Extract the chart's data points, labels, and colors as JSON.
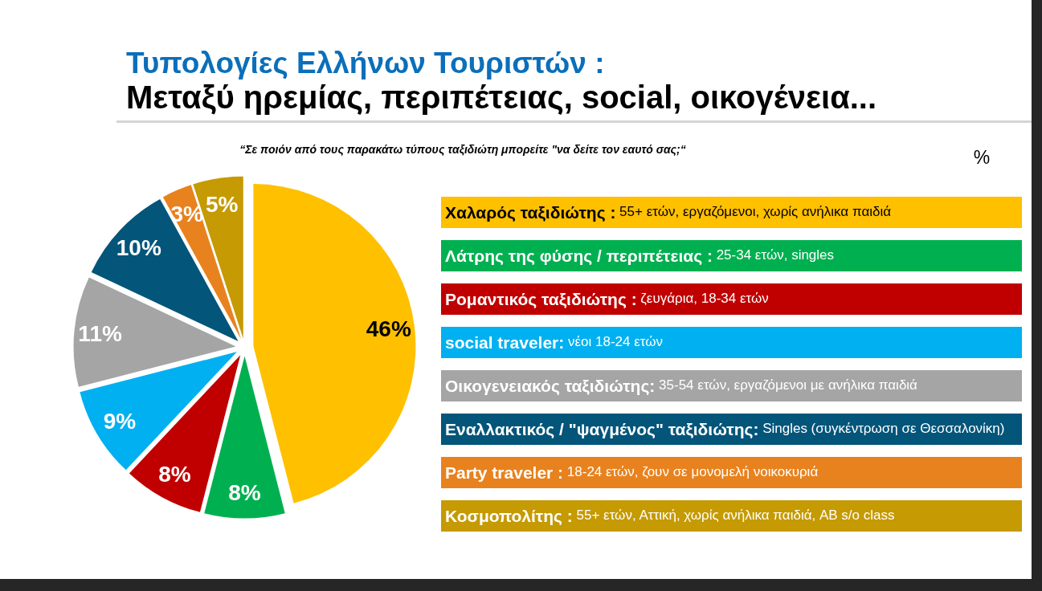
{
  "chart_data": {
    "type": "pie",
    "title": "Τυπολογίες Ελλήνων Τουριστών :",
    "subtitle": "Μεταξύ ηρεμίας, περιπέτειας, social, οικογένεια...",
    "annotations": [
      "“Σε ποιόν από τους παρακάτω τύπους ταξιδιώτη μπορείτε \"να δείτε τον εαυτό σας;“",
      "%"
    ],
    "categories": [
      "Χαλαρός ταξιδιώτης : 55+ ετών, εργαζόμενοι, χωρίς ανήλικα παιδιά",
      "Λάτρης της φύσης / περιπέτειας : 25-34 ετών, singles",
      "Ρομαντικός ταξιδιώτης : ζευγάρια, 18-34 ετών",
      "social traveler: νέοι 18-24 ετών",
      "Οικογενειακός ταξιδιώτης: 35-54 ετών, εργαζόμενοι με ανήλικα παιδιά",
      "Εναλλακτικός / \"ψαγμένος\" ταξιδιώτης: Singles (συγκέντρωση σε Θεσσαλονίκη)",
      "Party traveler : 18-24 ετών, ζουν σε μονομελή νοικοκυριά",
      "Κοσμοπολίτης : 55+ ετών, Αττική, χωρίς ανήλικα παιδιά, AB s/o class"
    ],
    "values": [
      46,
      8,
      8,
      9,
      11,
      10,
      3,
      5
    ],
    "colors": [
      "#ffc000",
      "#00b050",
      "#c00000",
      "#00b0f0",
      "#a5a5a5",
      "#03557a",
      "#e8821e",
      "#c59a02"
    ],
    "value_labels": [
      "46%",
      "8%",
      "8%",
      "9%",
      "11%",
      "10%",
      "3%",
      "5%"
    ],
    "legend": "right"
  }
}
